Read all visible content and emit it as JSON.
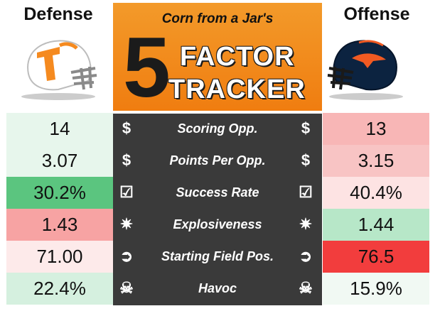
{
  "header": {
    "defense_title": "Defense",
    "offense_title": "Offense",
    "banner_subtitle": "Corn from a Jar's",
    "banner_number": "5",
    "banner_word1": "FACTOR",
    "banner_word2": "TRACKER"
  },
  "helmets": {
    "left": {
      "name": "tennessee-helmet",
      "shell": "#ffffff",
      "logo": "T",
      "logo_color": "#f58a1f"
    },
    "right": {
      "name": "utsa-helmet",
      "shell": "#0c2340",
      "logo_color": "#f15a22"
    }
  },
  "colors": {
    "banner_orange": "#f28a1e",
    "center_dark": "#3a3a3a",
    "good_light": "#e3f5ea",
    "good_mid": "#b9e8cb",
    "good_strong": "#55c27b",
    "bad_light": "#fde6e6",
    "bad_mid": "#f9b1b1",
    "bad_strong": "#f03a3a"
  },
  "rows": [
    {
      "metric": "Scoring Opp.",
      "icon": "$",
      "defense": "14",
      "offense": "13",
      "def_color": "#e7f6ec",
      "off_color": "#f8b6b6"
    },
    {
      "metric": "Points Per Opp.",
      "icon": "$",
      "defense": "3.07",
      "offense": "3.15",
      "def_color": "#e7f6ec",
      "off_color": "#f8c4c4"
    },
    {
      "metric": "Success Rate",
      "icon": "☑",
      "defense": "30.2%",
      "offense": "40.4%",
      "def_color": "#5bc57f",
      "off_color": "#fde3e3"
    },
    {
      "metric": "Explosiveness",
      "icon": "✷",
      "defense": "1.43",
      "offense": "1.44",
      "def_color": "#f7a3a3",
      "off_color": "#b7e7c8"
    },
    {
      "metric": "Starting Field Pos.",
      "icon": "➲",
      "defense": "71.00",
      "offense": "76.5",
      "def_color": "#fdeaea",
      "off_color": "#f23d3d"
    },
    {
      "metric": "Havoc",
      "icon": "☠",
      "defense": "22.4%",
      "offense": "15.9%",
      "def_color": "#d5f0df",
      "off_color": "#f1f9f3"
    }
  ]
}
